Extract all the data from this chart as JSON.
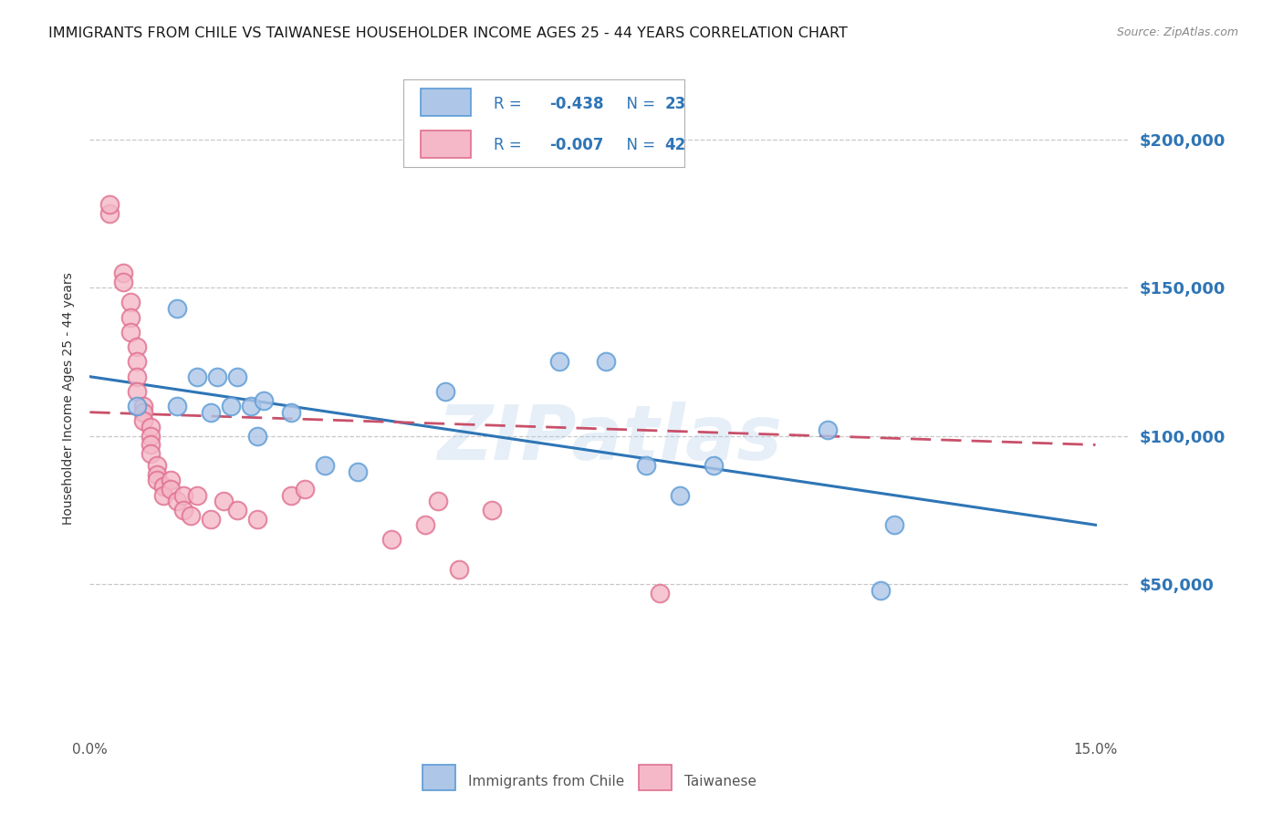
{
  "title": "IMMIGRANTS FROM CHILE VS TAIWANESE HOUSEHOLDER INCOME AGES 25 - 44 YEARS CORRELATION CHART",
  "source": "Source: ZipAtlas.com",
  "ylabel": "Householder Income Ages 25 - 44 years",
  "xlim": [
    0.0,
    0.155
  ],
  "ylim": [
    0,
    225000
  ],
  "ytick_positions": [
    50000,
    100000,
    150000,
    200000
  ],
  "ytick_labels": [
    "$50,000",
    "$100,000",
    "$150,000",
    "$200,000"
  ],
  "watermark": "ZIPatlas",
  "chile_color_face": "#aec6e8",
  "chile_color_edge": "#5b9bd5",
  "taiwanese_color_face": "#f4b8c8",
  "taiwanese_color_edge": "#e07090",
  "chile_line_color": "#2e75b6",
  "taiwanese_line_color": "#c9506a",
  "background_color": "#ffffff",
  "grid_color": "#c8c8c8",
  "title_fontsize": 11.5,
  "ylabel_fontsize": 10,
  "tick_fontsize": 11,
  "right_tick_color": "#2e75b6",
  "source_fontsize": 9,
  "legend_text_color": "#2e75b6",
  "legend_R1_val": "-0.438",
  "legend_N1_val": "23",
  "legend_R2_val": "-0.007",
  "legend_N2_val": "42",
  "chile_x": [
    0.007,
    0.013,
    0.016,
    0.019,
    0.021,
    0.022,
    0.024,
    0.026,
    0.03,
    0.035,
    0.04,
    0.053,
    0.07,
    0.077,
    0.083,
    0.088,
    0.093,
    0.11,
    0.12,
    0.013,
    0.018,
    0.025,
    0.118
  ],
  "chile_y": [
    110000,
    143000,
    120000,
    120000,
    110000,
    120000,
    110000,
    112000,
    108000,
    90000,
    88000,
    115000,
    125000,
    125000,
    90000,
    80000,
    90000,
    102000,
    70000,
    110000,
    108000,
    100000,
    48000
  ],
  "taiwanese_x": [
    0.003,
    0.003,
    0.005,
    0.005,
    0.006,
    0.006,
    0.006,
    0.007,
    0.007,
    0.007,
    0.007,
    0.008,
    0.008,
    0.008,
    0.009,
    0.009,
    0.009,
    0.009,
    0.01,
    0.01,
    0.01,
    0.011,
    0.011,
    0.012,
    0.012,
    0.013,
    0.014,
    0.014,
    0.015,
    0.016,
    0.018,
    0.02,
    0.022,
    0.025,
    0.03,
    0.032,
    0.045,
    0.05,
    0.052,
    0.055,
    0.06,
    0.085
  ],
  "taiwanese_y": [
    175000,
    178000,
    155000,
    152000,
    145000,
    140000,
    135000,
    130000,
    125000,
    120000,
    115000,
    110000,
    108000,
    105000,
    103000,
    100000,
    97000,
    94000,
    90000,
    87000,
    85000,
    83000,
    80000,
    85000,
    82000,
    78000,
    80000,
    75000,
    73000,
    80000,
    72000,
    78000,
    75000,
    72000,
    80000,
    82000,
    65000,
    70000,
    78000,
    55000,
    75000,
    47000
  ]
}
